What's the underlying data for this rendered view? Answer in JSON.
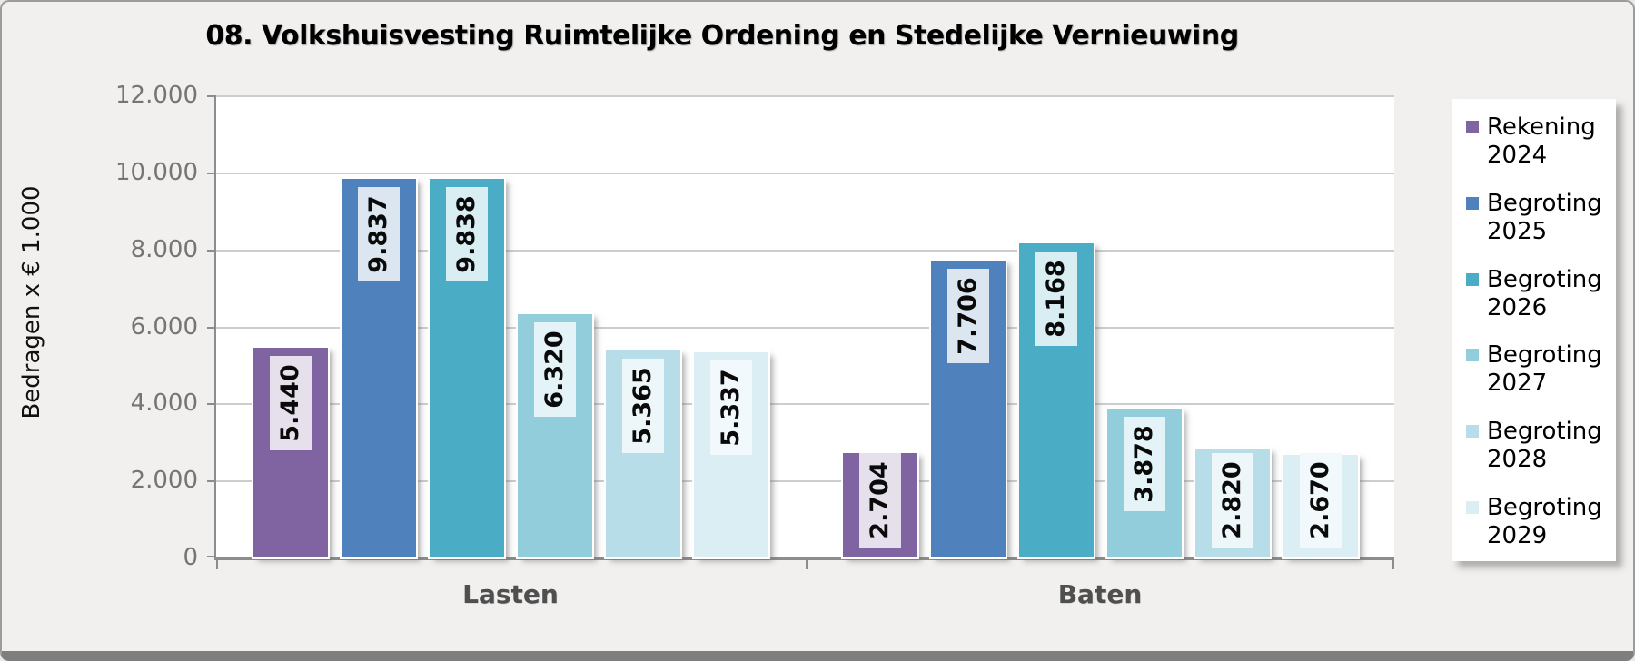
{
  "title": "08. Volkshuisvesting Ruimtelijke Ordening en Stedelijke Vernieuwing",
  "y_axis": {
    "title": "Bedragen x € 1.000",
    "ticks": [
      "12.000",
      "10.000",
      "8.000",
      "6.000",
      "4.000",
      "2.000",
      "0"
    ]
  },
  "chart_data": {
    "type": "bar",
    "categories": [
      "Lasten",
      "Baten"
    ],
    "series": [
      {
        "name": "Rekening 2024",
        "color": "#8064A2",
        "label_bg": "#E5E0EC",
        "values": [
          5440,
          2704
        ],
        "labels": [
          "5.440",
          "2.704"
        ]
      },
      {
        "name": "Begroting 2025",
        "color": "#4F81BD",
        "label_bg": "#DCE6F1",
        "values": [
          9837,
          7706
        ],
        "labels": [
          "9.837",
          "7.706"
        ]
      },
      {
        "name": "Begroting 2026",
        "color": "#4BACC6",
        "label_bg": "#D9EEF3",
        "values": [
          9838,
          8168
        ],
        "labels": [
          "9.838",
          "8.168"
        ]
      },
      {
        "name": "Begroting 2027",
        "color": "#92CDDC",
        "label_bg": "#E4F3F8",
        "values": [
          6320,
          3878
        ],
        "labels": [
          "6.320",
          "3.878"
        ]
      },
      {
        "name": "Begroting 2028",
        "color": "#B7DEE8",
        "label_bg": "#EDF7FA",
        "values": [
          5365,
          2820
        ],
        "labels": [
          "5.365",
          "2.820"
        ]
      },
      {
        "name": "Begroting 2029",
        "color": "#DAEEF3",
        "label_bg": "#F2F9FC",
        "values": [
          5337,
          2670
        ],
        "labels": [
          "5.337",
          "2.670"
        ]
      }
    ],
    "ylim": [
      0,
      12000
    ],
    "grid": true,
    "legend_position": "right"
  }
}
